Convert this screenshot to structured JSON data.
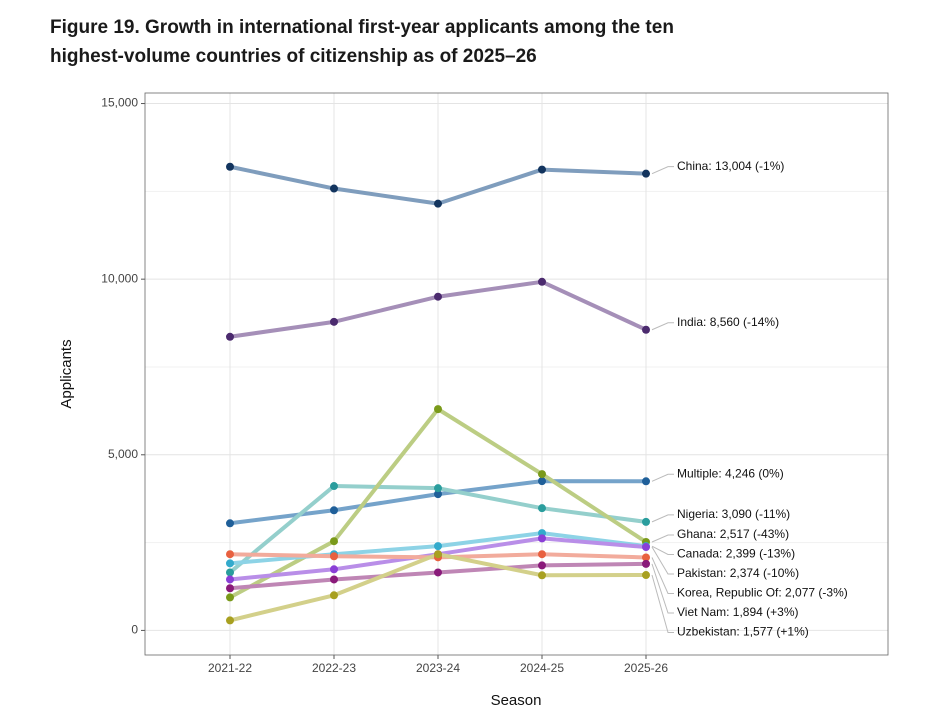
{
  "chart_data": {
    "type": "line",
    "title": [
      "Figure 19. Growth in international first-year applicants among the ten",
      "highest-volume countries of citizenship as of 2025–26"
    ],
    "x_label": "Season",
    "y_label": "Applicants",
    "categories": [
      "2021-22",
      "2022-23",
      "2023-24",
      "2024-25",
      "2025-26"
    ],
    "ylim": [
      -700,
      15300
    ],
    "yticks": [
      0,
      {
        "value": 5000,
        "label": "5,000"
      },
      {
        "value": 10000,
        "label": "10,000"
      },
      {
        "value": 15000,
        "label": "15,000"
      }
    ],
    "grid": true,
    "series": [
      {
        "name": "China",
        "color": "#7f9dbd",
        "marker_color": "#12345e",
        "values": [
          13200,
          12580,
          12150,
          13120,
          13004
        ],
        "end_label": "China: 13,004 (-1%)"
      },
      {
        "name": "India",
        "color": "#a58fb8",
        "marker_color": "#4b2a6e",
        "values": [
          8360,
          8785,
          9500,
          9925,
          8560
        ],
        "end_label": "India: 8,560 (-14%)"
      },
      {
        "name": "Multiple",
        "color": "#75a3ca",
        "marker_color": "#1f5f99",
        "values": [
          3050,
          3420,
          3880,
          4250,
          4246
        ],
        "end_label": "Multiple: 4,246 (0%)"
      },
      {
        "name": "Nigeria",
        "color": "#94cfcc",
        "marker_color": "#2a9d9d",
        "values": [
          1650,
          4110,
          4050,
          3480,
          3090
        ],
        "end_label": "Nigeria: 3,090 (-11%)"
      },
      {
        "name": "Ghana",
        "color": "#bccd83",
        "marker_color": "#7a9a1a",
        "values": [
          940,
          2540,
          6300,
          4450,
          2517
        ],
        "end_label": "Ghana: 2,517 (-43%)"
      },
      {
        "name": "Canada",
        "color": "#8dd3e6",
        "marker_color": "#33aacc",
        "values": [
          1910,
          2170,
          2400,
          2770,
          2399
        ],
        "end_label": "Canada: 2,399 (-13%)"
      },
      {
        "name": "Pakistan",
        "color": "#b98ee8",
        "marker_color": "#8a3fd6",
        "values": [
          1450,
          1740,
          2170,
          2620,
          2374
        ],
        "end_label": "Pakistan: 2,374 (-10%)"
      },
      {
        "name": "Korea, Republic Of",
        "color": "#f2ab9c",
        "marker_color": "#e8603f",
        "values": [
          2170,
          2110,
          2080,
          2170,
          2077
        ],
        "end_label": "Korea, Republic Of: 2,077 (-3%)"
      },
      {
        "name": "Viet Nam",
        "color": "#bf86b5",
        "marker_color": "#8a1a7a",
        "values": [
          1200,
          1450,
          1650,
          1850,
          1894
        ],
        "end_label": "Viet Nam: 1,894 (+3%)"
      },
      {
        "name": "Uzbekistan",
        "color": "#d3d08a",
        "marker_color": "#a8a020",
        "values": [
          285,
          1000,
          2170,
          1570,
          1577
        ],
        "end_label": "Uzbekistan: 1,577 (+1%)"
      }
    ]
  }
}
